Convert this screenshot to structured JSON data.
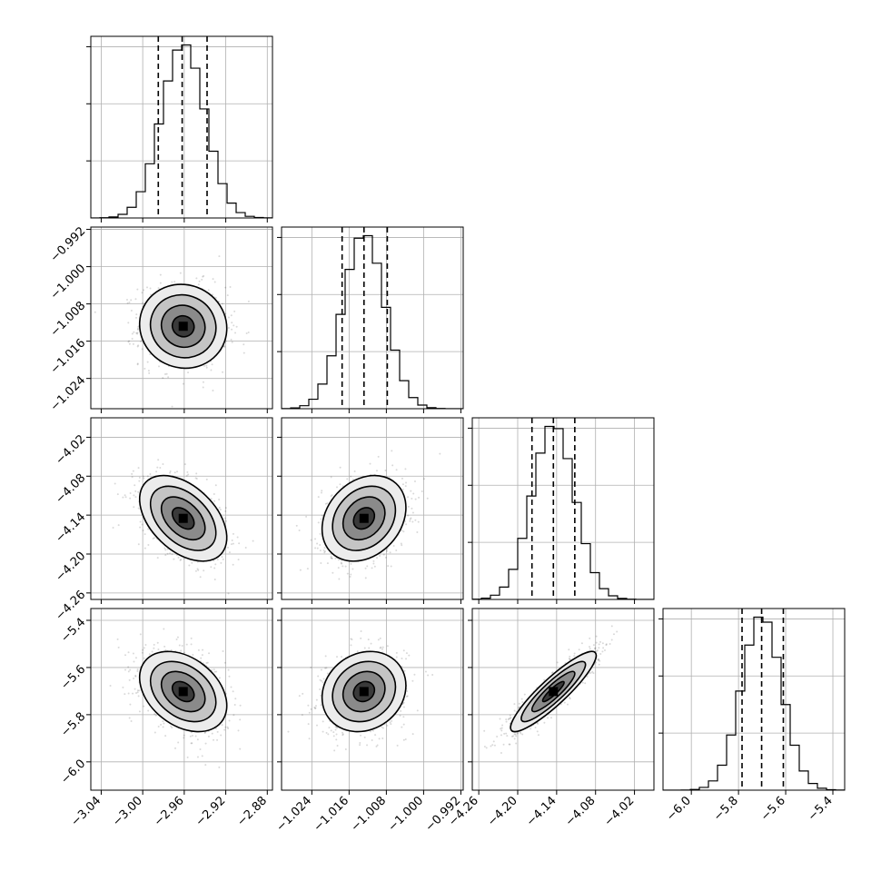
{
  "chart_data": {
    "type": "corner",
    "grid": true,
    "parameters": [
      {
        "range": [
          -3.05,
          -2.875
        ],
        "mean": -2.961,
        "sd": 0.021,
        "quantiles": [
          -2.985,
          -2.962,
          -2.938
        ],
        "ticks": [
          -3.04,
          -3.0,
          -2.96,
          -2.92,
          -2.88
        ],
        "tick_labels": [
          "−3.04",
          "−3.00",
          "−2.96",
          "−2.92",
          "−2.88"
        ]
      },
      {
        "range": [
          -1.0305,
          -0.9915
        ],
        "mean": -1.0128,
        "sd": 0.0045,
        "quantiles": [
          -1.0175,
          -1.0128,
          -1.0078
        ],
        "ticks": [
          -1.024,
          -1.016,
          -1.008,
          -1.0,
          -0.992
        ],
        "tick_labels": [
          "−1.024",
          "−1.016",
          "−1.008",
          "−1.000",
          "−0.992"
        ]
      },
      {
        "range": [
          -4.27,
          -3.99
        ],
        "mean": -4.145,
        "sd": 0.033,
        "quantiles": [
          -4.178,
          -4.145,
          -4.112
        ],
        "ticks": [
          -4.26,
          -4.2,
          -4.14,
          -4.08,
          -4.02
        ],
        "tick_labels": [
          "−4.26",
          "−4.20",
          "−4.14",
          "−4.08",
          "−4.02"
        ]
      },
      {
        "range": [
          -6.12,
          -5.35
        ],
        "mean": -5.702,
        "sd": 0.085,
        "quantiles": [
          -5.785,
          -5.702,
          -5.61
        ],
        "ticks": [
          -6.0,
          -5.8,
          -5.6,
          -5.4
        ],
        "tick_labels": [
          "−6.0",
          "−5.8",
          "−5.6",
          "−5.4"
        ]
      }
    ],
    "correlations": [
      [
        1,
        -0.05,
        -0.45,
        -0.35
      ],
      [
        -0.05,
        1,
        0.25,
        0.15
      ],
      [
        -0.45,
        0.25,
        1,
        0.9
      ],
      [
        -0.35,
        0.15,
        0.9,
        1
      ]
    ],
    "contour_levels_sigma": [
      0.5,
      1.0,
      1.5,
      2.0
    ],
    "histogram": {
      "bins": 20,
      "x_only_tick_marks": true
    }
  }
}
